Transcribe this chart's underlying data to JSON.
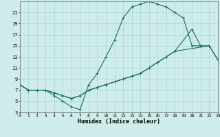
{
  "bg_color": "#cdecea",
  "grid_color": "#aad4d0",
  "line_color": "#1a6b6b",
  "xlabel": "Humidex (Indice chaleur)",
  "xlim": [
    0,
    23
  ],
  "ylim": [
    3,
    23
  ],
  "xticks": [
    0,
    1,
    2,
    3,
    4,
    5,
    6,
    7,
    8,
    9,
    10,
    11,
    12,
    13,
    14,
    15,
    16,
    17,
    18,
    19,
    20,
    21,
    22,
    23
  ],
  "yticks": [
    3,
    5,
    7,
    9,
    11,
    13,
    15,
    17,
    19,
    21
  ],
  "curve1_x": [
    0,
    1,
    2,
    3,
    4,
    5,
    6,
    7,
    8,
    9,
    10,
    11,
    12,
    13,
    14,
    15,
    16,
    17,
    18,
    19,
    20,
    21
  ],
  "curve1_y": [
    8,
    7,
    7,
    7,
    6,
    5,
    4,
    3.5,
    8,
    10,
    13,
    16,
    20,
    22,
    22.5,
    23,
    22.5,
    22,
    21,
    20,
    15,
    15
  ],
  "curve2_x": [
    0,
    1,
    2,
    3,
    4,
    5,
    6,
    7,
    8,
    9,
    10,
    11,
    12,
    13,
    14,
    15,
    16,
    17,
    18,
    20,
    21,
    22,
    23
  ],
  "curve2_y": [
    8,
    7,
    7,
    7,
    6.5,
    6,
    5.5,
    6,
    7,
    7.5,
    8,
    8.5,
    9,
    9.5,
    10,
    11,
    12,
    13,
    14,
    18,
    15,
    15,
    12.5
  ],
  "curve3_x": [
    0,
    1,
    2,
    3,
    4,
    5,
    6,
    7,
    8,
    9,
    10,
    11,
    12,
    13,
    14,
    15,
    16,
    17,
    18,
    22,
    23
  ],
  "curve3_y": [
    8,
    7,
    7,
    7,
    6.5,
    6,
    5.5,
    6,
    7,
    7.5,
    8,
    8.5,
    9,
    9.5,
    10,
    11,
    12,
    13,
    14,
    15,
    12.5
  ]
}
